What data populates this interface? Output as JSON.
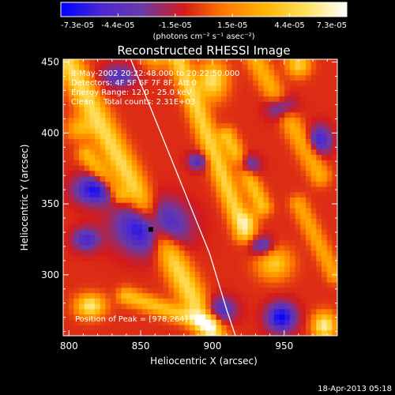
{
  "chart_data": {
    "type": "heatmap",
    "title": "Reconstructed RHESSI Image",
    "xlabel": "Heliocentric X (arcsec)",
    "ylabel": "Heliocentric Y (arcsec)",
    "xlim": [
      796,
      987
    ],
    "ylim": [
      257,
      452
    ],
    "x_ticks": [
      800,
      850,
      900,
      950
    ],
    "y_ticks": [
      300,
      350,
      400,
      450
    ],
    "colorbar": {
      "ticks": [
        "-7.3e-05",
        "-4.4e-05",
        "-1.5e-05",
        "1.5e-05",
        "4.4e-05",
        "7.3e-05"
      ],
      "units_label": "(photons cm⁻² s⁻¹ asec⁻²)",
      "vmin": -7.3e-05,
      "vmax": 7.3e-05,
      "colors": [
        "#0000ff",
        "#4a28d0",
        "#6a3aa8",
        "#d41a1a",
        "#ff7a00",
        "#ffb400",
        "#ffe060",
        "#ffffff"
      ]
    },
    "annotations": [
      "8-May-2002 20:22:48.000 to 20:22:50.000",
      "Detectors: 4F 5F 6F 7F 8F, Att 0",
      "Energy Range: 12.0 - 25.0 keV",
      "Clean    Total counts: 2.31E+03",
      "Position of Peak = [978,264]"
    ],
    "limb_curve": [
      [
        843,
        452
      ],
      [
        856,
        420
      ],
      [
        870,
        385
      ],
      [
        884,
        350
      ],
      [
        898,
        315
      ],
      [
        910,
        275
      ],
      [
        916,
        257
      ]
    ],
    "marker": [
      857,
      332
    ],
    "peak": [
      978,
      264
    ]
  },
  "footer": {
    "timestamp": "18-Apr-2013 05:18"
  }
}
